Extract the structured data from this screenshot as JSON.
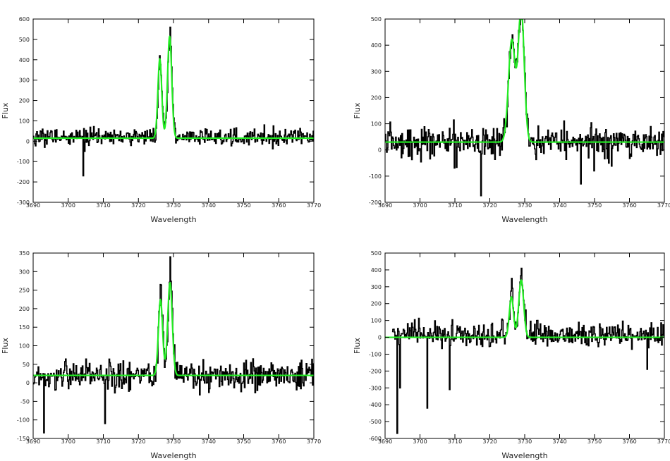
{
  "chart_data": [
    {
      "type": "line",
      "panel": "top-left",
      "title": "",
      "xlabel": "Wavelength",
      "ylabel": "Flux",
      "xlim": [
        3690,
        3770
      ],
      "ylim": [
        -300,
        600
      ],
      "xticks": [
        3690,
        3700,
        3710,
        3720,
        3730,
        3740,
        3750,
        3760,
        3770
      ],
      "yticks": [
        -300,
        -200,
        -100,
        0,
        100,
        200,
        300,
        400,
        500,
        600
      ],
      "xtick_labels": [
        "3690",
        "3700",
        "3710",
        "3720",
        "3730",
        "3740",
        "3750",
        "3760",
        "3770"
      ],
      "ytick_labels": [
        "-300",
        "-200",
        "-100",
        "0",
        "100",
        "200",
        "300",
        "400",
        "500",
        "600"
      ],
      "grid": false,
      "series": [
        {
          "role": "observed spectrum",
          "color": "#000000",
          "x_range": [
            3690,
            3770
          ],
          "baseline": 20,
          "noise_sigma": 20,
          "peaks": [
            {
              "x": 3726.0,
              "y": 420
            },
            {
              "x": 3729.0,
              "y": 560
            }
          ],
          "notable_dips": [
            {
              "x": 3704.2,
              "y": -170
            }
          ]
        },
        {
          "role": "gaussian fit",
          "color": "#22ee22",
          "baseline": 15,
          "components": [
            {
              "center": 3726.1,
              "amplitude": 390,
              "sigma": 0.55
            },
            {
              "center": 3728.9,
              "amplitude": 500,
              "sigma": 0.6
            }
          ]
        }
      ]
    },
    {
      "type": "line",
      "panel": "top-right",
      "title": "",
      "xlabel": "Wavelength",
      "ylabel": "Flux",
      "xlim": [
        3690,
        3770
      ],
      "ylim": [
        -200,
        500
      ],
      "xticks": [
        3690,
        3700,
        3710,
        3720,
        3730,
        3740,
        3750,
        3760,
        3770
      ],
      "yticks": [
        -200,
        -100,
        0,
        100,
        200,
        300,
        400,
        500
      ],
      "xtick_labels": [
        "3690",
        "3700",
        "3710",
        "3720",
        "3730",
        "3740",
        "3750",
        "3760",
        "3770"
      ],
      "ytick_labels": [
        "-200",
        "-100",
        "0",
        "100",
        "200",
        "300",
        "400",
        "500"
      ],
      "grid": false,
      "series": [
        {
          "role": "observed spectrum",
          "color": "#000000",
          "x_range": [
            3690,
            3770
          ],
          "baseline": 30,
          "noise_sigma": 30,
          "peaks": [
            {
              "x": 3726.5,
              "y": 440
            },
            {
              "x": 3729.0,
              "y": 550
            }
          ],
          "notable_dips": [
            {
              "x": 3717.5,
              "y": -175
            },
            {
              "x": 3746.0,
              "y": -130
            },
            {
              "x": 3749.8,
              "y": -80
            }
          ]
        },
        {
          "role": "gaussian fit",
          "color": "#22ee22",
          "baseline": 30,
          "components": [
            {
              "center": 3726.3,
              "amplitude": 390,
              "sigma": 0.95
            },
            {
              "center": 3729.0,
              "amplitude": 510,
              "sigma": 0.85
            }
          ]
        }
      ]
    },
    {
      "type": "line",
      "panel": "bottom-left",
      "title": "",
      "xlabel": "Wavelength",
      "ylabel": "Flux",
      "xlim": [
        3690,
        3770
      ],
      "ylim": [
        -150,
        350
      ],
      "xticks": [
        3690,
        3700,
        3710,
        3720,
        3730,
        3740,
        3750,
        3760,
        3770
      ],
      "yticks": [
        -150,
        -100,
        -50,
        0,
        50,
        100,
        150,
        200,
        250,
        300,
        350
      ],
      "xtick_labels": [
        "3690",
        "3700",
        "3710",
        "3720",
        "3730",
        "3740",
        "3750",
        "3760",
        "3770"
      ],
      "ytick_labels": [
        "-150",
        "-100",
        "-50",
        "0",
        "50",
        "100",
        "150",
        "200",
        "250",
        "300",
        "350"
      ],
      "grid": false,
      "series": [
        {
          "role": "observed spectrum",
          "color": "#000000",
          "x_range": [
            3690,
            3770
          ],
          "baseline": 20,
          "noise_sigma": 20,
          "peaks": [
            {
              "x": 3726.2,
              "y": 265
            },
            {
              "x": 3729.0,
              "y": 340
            }
          ],
          "notable_dips": [
            {
              "x": 3693.0,
              "y": -135
            },
            {
              "x": 3710.5,
              "y": -110
            }
          ]
        },
        {
          "role": "gaussian fit",
          "color": "#22ee22",
          "baseline": 20,
          "components": [
            {
              "center": 3726.3,
              "amplitude": 205,
              "sigma": 0.6
            },
            {
              "center": 3729.0,
              "amplitude": 250,
              "sigma": 0.65
            }
          ]
        }
      ]
    },
    {
      "type": "line",
      "panel": "bottom-right",
      "title": "",
      "xlabel": "Wavelength",
      "ylabel": "Flux",
      "xlim": [
        3690,
        3770
      ],
      "ylim": [
        -600,
        500
      ],
      "xticks": [
        3690,
        3700,
        3710,
        3720,
        3730,
        3740,
        3750,
        3760,
        3770
      ],
      "yticks": [
        -600,
        -500,
        -400,
        -300,
        -200,
        -100,
        0,
        100,
        200,
        300,
        400,
        500
      ],
      "xtick_labels": [
        "3690",
        "3700",
        "3710",
        "3720",
        "3730",
        "3740",
        "3750",
        "3760",
        "3770"
      ],
      "ytick_labels": [
        "-600",
        "-500",
        "-400",
        "-300",
        "-200",
        "-100",
        "0",
        "100",
        "200",
        "300",
        "400",
        "500"
      ],
      "grid": false,
      "series": [
        {
          "role": "observed spectrum",
          "color": "#000000",
          "x_range": [
            3692,
            3770
          ],
          "baseline": 15,
          "noise_sigma": 35,
          "peaks": [
            {
              "x": 3726.2,
              "y": 350
            },
            {
              "x": 3729.0,
              "y": 410
            }
          ],
          "notable_dips": [
            {
              "x": 3693.5,
              "y": -570
            },
            {
              "x": 3694.2,
              "y": -300
            },
            {
              "x": 3702.0,
              "y": -420
            },
            {
              "x": 3708.5,
              "y": -310
            },
            {
              "x": 3765.0,
              "y": -190
            }
          ]
        },
        {
          "role": "gaussian fit",
          "color": "#22ee22",
          "baseline": 0,
          "components": [
            {
              "center": 3726.2,
              "amplitude": 240,
              "sigma": 0.6
            },
            {
              "center": 3729.0,
              "amplitude": 340,
              "sigma": 0.7
            }
          ]
        }
      ]
    }
  ]
}
